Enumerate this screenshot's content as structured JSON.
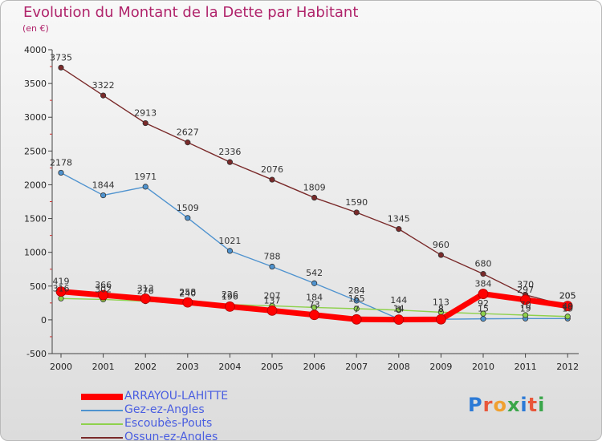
{
  "title": "Evolution du Montant de la Dette par Habitant",
  "subtitle": "(en €)",
  "logo": {
    "text": "Proxiti",
    "colors": [
      "#2c7ad6",
      "#e8573a",
      "#f0a030",
      "#3aa64a",
      "#2c7ad6",
      "#e8573a",
      "#3aa64a"
    ]
  },
  "chart_data": {
    "type": "line",
    "title": "Evolution du Montant de la Dette par Habitant",
    "ylabel": "(en €)",
    "xlabel": "",
    "x": [
      "2000",
      "2001",
      "2002",
      "2003",
      "2004",
      "2005",
      "2006",
      "2007",
      "2008",
      "2009",
      "2010",
      "2011",
      "2012"
    ],
    "ylim": [
      -500,
      4000
    ],
    "yticks": [
      "-500",
      "0",
      "500",
      "1000",
      "1500",
      "2000",
      "2500",
      "3000",
      "3500",
      "4000"
    ],
    "grid": false,
    "legend": "bottom-left",
    "series": [
      {
        "name": "ARRAYOU-LAHITTE",
        "color": "#ff0000",
        "width": 7,
        "values": [
          419,
          366,
          313,
          258,
          196,
          137,
          73,
          7,
          3,
          8,
          384,
          297,
          205
        ],
        "labels": [
          "419",
          "366",
          "313",
          "258",
          "196",
          "137",
          "73",
          "7",
          "3",
          "8",
          "384",
          "297",
          "205"
        ]
      },
      {
        "name": "Gez-ez-Angles",
        "color": "#4f93cf",
        "width": 1.4,
        "values": [
          2178,
          1844,
          1971,
          1509,
          1021,
          788,
          542,
          284,
          14,
          8,
          15,
          19,
          19
        ],
        "labels": [
          "2178",
          "1844",
          "1971",
          "1509",
          "1021",
          "788",
          "542",
          "284",
          "14",
          "8",
          "15",
          "19",
          "19"
        ]
      },
      {
        "name": "Escoubès-Pouts",
        "color": "#8ed14c",
        "width": 1.4,
        "values": [
          316,
          302,
          276,
          240,
          226,
          207,
          184,
          165,
          144,
          113,
          92,
          70,
          49
        ],
        "labels": [
          "316",
          "302",
          "276",
          "240",
          "226",
          "207",
          "184",
          "165",
          "144",
          "113",
          "92",
          "70",
          "49"
        ]
      },
      {
        "name": "Ossun-ez-Angles",
        "color": "#7a2a2a",
        "width": 1.4,
        "values": [
          3735,
          3322,
          2913,
          2627,
          2336,
          2076,
          1809,
          1590,
          1345,
          960,
          680,
          370,
          205
        ],
        "labels": [
          "3735",
          "3322",
          "2913",
          "2627",
          "2336",
          "2076",
          "1809",
          "1590",
          "1345",
          "960",
          "680",
          "370",
          "205"
        ]
      }
    ]
  }
}
